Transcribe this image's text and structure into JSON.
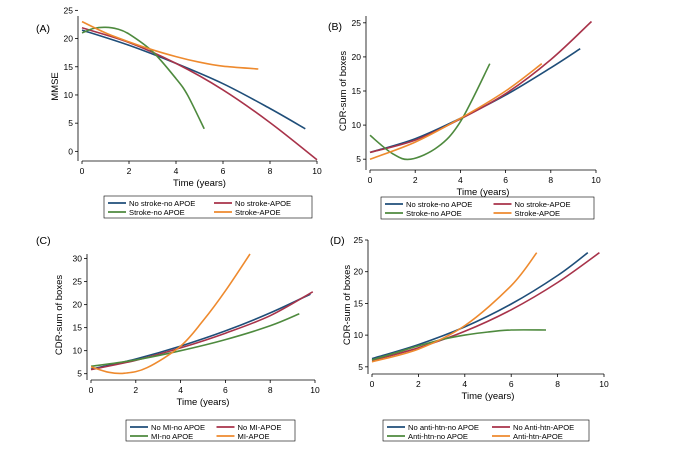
{
  "chart_data": [
    {
      "type": "line",
      "panel_label": "(A)",
      "xlabel": "Time (years)",
      "ylabel": "MMSE",
      "xlim": [
        0,
        10
      ],
      "ylim": [
        -1,
        24
      ],
      "xticks": [
        0,
        2,
        4,
        6,
        8,
        10
      ],
      "yticks": [
        0,
        5,
        10,
        15,
        20,
        25
      ],
      "grid": false,
      "legend_position": "bottom",
      "series": [
        {
          "name": "No stroke-no APOE",
          "color": "#1f4e79",
          "x": [
            0,
            2,
            4,
            6,
            8,
            9.5
          ],
          "y": [
            21.5,
            18.8,
            15.6,
            12.0,
            7.6,
            4.0
          ]
        },
        {
          "name": "No stroke-APOE",
          "color": "#a8334a",
          "x": [
            0,
            2,
            4,
            6,
            8,
            10
          ],
          "y": [
            21.9,
            19.3,
            15.6,
            10.9,
            5.1,
            -1.5
          ]
        },
        {
          "name": "Stroke-no APOE",
          "color": "#4e8a3e",
          "x": [
            0,
            0.5,
            1,
            1.5,
            2,
            3,
            4,
            4.5,
            5.2
          ],
          "y": [
            21.0,
            21.8,
            22.0,
            21.7,
            20.8,
            17.7,
            12.9,
            9.9,
            4.0
          ]
        },
        {
          "name": "Stroke-APOE",
          "color": "#ee8a2e",
          "x": [
            0,
            1,
            2,
            3,
            4,
            5,
            6,
            7.5
          ],
          "y": [
            23.0,
            21.0,
            19.4,
            18.0,
            16.8,
            15.8,
            15.1,
            14.6
          ]
        }
      ]
    },
    {
      "type": "line",
      "panel_label": "(B)",
      "xlabel": "Time (years)",
      "ylabel": "CDR-sum of boxes",
      "xlim": [
        0,
        10
      ],
      "ylim": [
        4,
        26
      ],
      "xticks": [
        0,
        2,
        4,
        6,
        8,
        10
      ],
      "yticks": [
        5,
        10,
        15,
        20,
        25
      ],
      "grid": false,
      "legend_position": "bottom",
      "series": [
        {
          "name": "No stroke-no APOE",
          "color": "#1f4e79",
          "x": [
            0,
            2,
            4,
            6,
            8,
            9.3
          ],
          "y": [
            6.0,
            8.0,
            11.0,
            14.4,
            18.4,
            21.2
          ]
        },
        {
          "name": "No stroke-APOE",
          "color": "#a8334a",
          "x": [
            0,
            2,
            4,
            6,
            8,
            9.8
          ],
          "y": [
            6.0,
            7.8,
            10.9,
            14.6,
            19.6,
            25.2
          ]
        },
        {
          "name": "Stroke-no APOE",
          "color": "#4e8a3e",
          "x": [
            0,
            1,
            1.8,
            3,
            4,
            5.3
          ],
          "y": [
            8.5,
            5.8,
            5.0,
            6.8,
            10.5,
            19.0
          ]
        },
        {
          "name": "Stroke-APOE",
          "color": "#ee8a2e",
          "x": [
            0,
            2,
            4,
            6,
            7.6
          ],
          "y": [
            5.0,
            7.5,
            11.0,
            15.0,
            19.0
          ]
        }
      ]
    },
    {
      "type": "line",
      "panel_label": "(C)",
      "xlabel": "Time (years)",
      "ylabel": "CDR-sum of boxes",
      "xlim": [
        0,
        10
      ],
      "ylim": [
        4.5,
        31
      ],
      "xticks": [
        0,
        2,
        4,
        6,
        8,
        10
      ],
      "yticks": [
        5,
        10,
        15,
        20,
        25,
        30
      ],
      "grid": false,
      "legend_position": "bottom",
      "series": [
        {
          "name": "No MI-no APOE",
          "color": "#1f4e79",
          "x": [
            0,
            2,
            4,
            6,
            8,
            9.8
          ],
          "y": [
            6.0,
            8.2,
            11.0,
            14.3,
            18.2,
            22.3
          ]
        },
        {
          "name": "No MI-APOE",
          "color": "#a8334a",
          "x": [
            0,
            2,
            4,
            6,
            8,
            9.9
          ],
          "y": [
            5.9,
            7.9,
            10.6,
            13.8,
            17.6,
            22.8
          ]
        },
        {
          "name": "MI-no APOE",
          "color": "#4e8a3e",
          "x": [
            0,
            2,
            4,
            6,
            8,
            9.3
          ],
          "y": [
            6.6,
            8.0,
            10.0,
            12.4,
            15.4,
            18.0
          ]
        },
        {
          "name": "MI-APOE",
          "color": "#ee8a2e",
          "x": [
            0,
            0.8,
            1.5,
            2.5,
            4,
            5,
            6,
            7.1
          ],
          "y": [
            6.5,
            5.3,
            5.1,
            6.3,
            11.0,
            16.5,
            23.0,
            31.0
          ]
        }
      ]
    },
    {
      "type": "line",
      "panel_label": "(D)",
      "xlabel": "Time (years)",
      "ylabel": "CDR-sum of boxes",
      "xlim": [
        0,
        10
      ],
      "ylim": [
        4.5,
        25
      ],
      "xticks": [
        0,
        2,
        4,
        6,
        8,
        10
      ],
      "yticks": [
        5,
        10,
        15,
        20,
        25
      ],
      "grid": false,
      "legend_position": "bottom",
      "series": [
        {
          "name": "No anti-htn-no APOE",
          "color": "#1f4e79",
          "x": [
            0,
            2,
            4,
            6,
            8,
            9.3
          ],
          "y": [
            6.3,
            8.5,
            11.3,
            14.9,
            19.4,
            23.0
          ]
        },
        {
          "name": "No Anti-htn-APOE",
          "color": "#a8334a",
          "x": [
            0,
            2,
            4,
            6,
            8,
            9.8
          ],
          "y": [
            6.0,
            8.0,
            10.6,
            14.0,
            18.3,
            23.0
          ]
        },
        {
          "name": "Anti-htn-no APOE",
          "color": "#4e8a3e",
          "x": [
            0,
            1,
            2,
            3,
            4,
            5,
            6,
            7.5
          ],
          "y": [
            6.1,
            7.2,
            8.3,
            9.3,
            10.0,
            10.5,
            10.8,
            10.8
          ]
        },
        {
          "name": "Anti-htn-APOE",
          "color": "#ee8a2e",
          "x": [
            0,
            2,
            4,
            6,
            7.1
          ],
          "y": [
            5.8,
            7.8,
            11.5,
            17.8,
            23.0
          ]
        }
      ]
    }
  ]
}
